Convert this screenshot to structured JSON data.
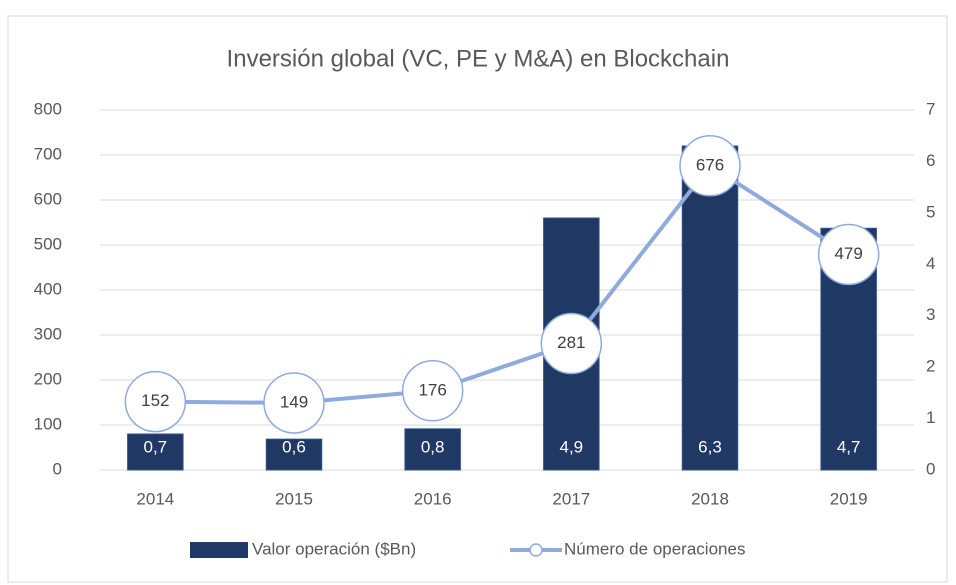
{
  "chart_data": {
    "type": "bar-line",
    "title": "Inversión global (VC, PE y M&A) en Blockchain",
    "categories": [
      "2014",
      "2015",
      "2016",
      "2017",
      "2018",
      "2019"
    ],
    "series": [
      {
        "name": "Valor operación ($Bn)",
        "type": "bar",
        "axis": "y2",
        "color": "#1f3864",
        "values": [
          0.7,
          0.6,
          0.8,
          4.9,
          6.3,
          4.7
        ],
        "value_labels": [
          "0,7",
          "0,6",
          "0,8",
          "4,9",
          "6,3",
          "4,7"
        ]
      },
      {
        "name": "Número de operaciones",
        "type": "line",
        "axis": "y",
        "color": "#8faadc",
        "values": [
          152,
          149,
          176,
          281,
          676,
          479
        ]
      }
    ],
    "ylim": [
      0,
      800
    ],
    "yticks": [
      0,
      100,
      200,
      300,
      400,
      500,
      600,
      700,
      800
    ],
    "y2lim": [
      0,
      7
    ],
    "y2ticks": [
      0,
      1,
      2,
      3,
      4,
      5,
      6,
      7
    ],
    "grid": true,
    "legend": "bottom"
  }
}
